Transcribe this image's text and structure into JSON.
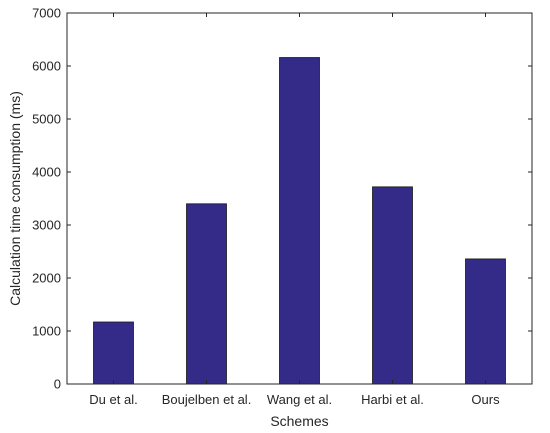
{
  "chart_data": {
    "type": "bar",
    "title": "",
    "xlabel": "Schemes",
    "ylabel": "Calculation time consumption (ms)",
    "categories": [
      "Du et al.",
      "Boujelben et al.",
      "Wang et al.",
      "Harbi et al.",
      "Ours"
    ],
    "values": [
      1170,
      3400,
      6160,
      3720,
      2360
    ],
    "ylim": [
      0,
      7000
    ],
    "yticks": [
      0,
      1000,
      2000,
      3000,
      4000,
      5000,
      6000,
      7000
    ],
    "grid": false,
    "bar_color": "#342a87"
  }
}
